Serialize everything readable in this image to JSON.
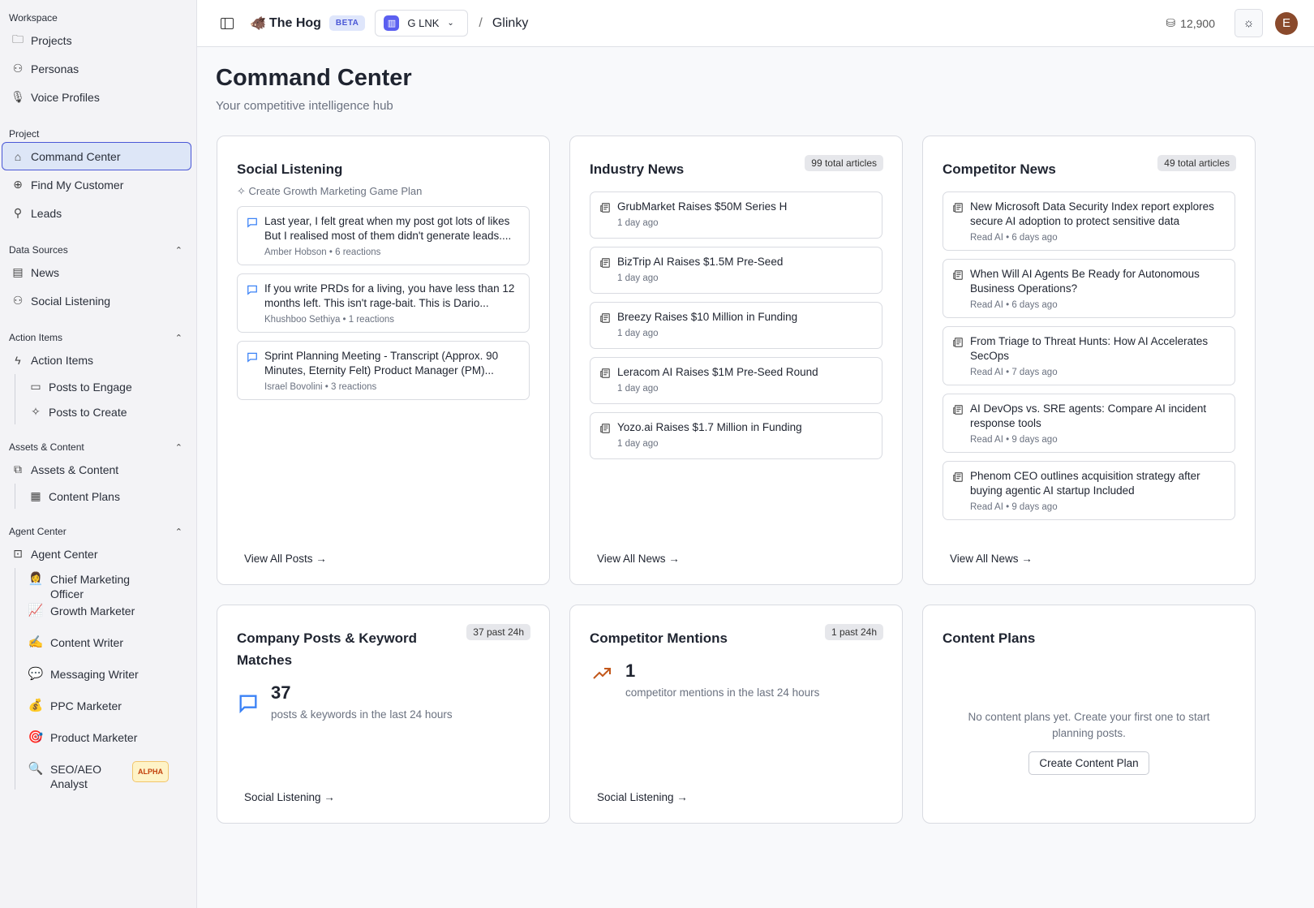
{
  "sidebar": {
    "workspace_label": "Workspace",
    "workspace": [
      {
        "label": "Projects",
        "icon": "folder-icon"
      },
      {
        "label": "Personas",
        "icon": "users-icon"
      },
      {
        "label": "Voice Profiles",
        "icon": "mic-icon"
      }
    ],
    "project_label": "Project",
    "project": [
      {
        "label": "Command Center",
        "icon": "home-icon",
        "active": true
      },
      {
        "label": "Find My Customer",
        "icon": "crosshair-icon"
      },
      {
        "label": "Leads",
        "icon": "user-check-icon"
      }
    ],
    "data_sources_label": "Data Sources",
    "data_sources": [
      {
        "label": "News",
        "icon": "newspaper-icon"
      },
      {
        "label": "Social Listening",
        "icon": "users-icon"
      }
    ],
    "action_items_label": "Action Items",
    "action_items": {
      "label": "Action Items",
      "children": [
        {
          "label": "Posts to Engage"
        },
        {
          "label": "Posts to Create"
        }
      ]
    },
    "assets_label": "Assets & Content",
    "assets": {
      "label": "Assets & Content",
      "children": [
        {
          "label": "Content Plans"
        }
      ]
    },
    "agent_label": "Agent Center",
    "agent": {
      "label": "Agent Center",
      "children": [
        {
          "label": "Chief Marketing Officer",
          "emoji": "👩‍💼"
        },
        {
          "label": "Growth Marketer",
          "emoji": "📈"
        },
        {
          "label": "Content Writer",
          "emoji": "✍️"
        },
        {
          "label": "Messaging Writer",
          "emoji": "💬"
        },
        {
          "label": "PPC Marketer",
          "emoji": "💰"
        },
        {
          "label": "Product Marketer",
          "emoji": "🎯"
        },
        {
          "label": "SEO/AEO Analyst",
          "emoji": "🔍",
          "badge": "ALPHA"
        }
      ]
    }
  },
  "header": {
    "brand": "The Hog",
    "brand_emoji": "🐗",
    "beta": "BETA",
    "workspace": "G LNK",
    "breadcrumb": "Glinky",
    "credits": "12,900"
  },
  "user": {
    "initial": "E"
  },
  "page": {
    "title": "Command Center",
    "subtitle": "Your competitive intelligence hub"
  },
  "social": {
    "title": "Social Listening",
    "action": "Create Growth Marketing Game Plan",
    "footer": "View All Posts →",
    "posts": [
      {
        "text": "Last year, I felt great when my post got lots of likes But I realised most of them didn't generate leads....",
        "meta": "Amber Hobson • 6 reactions"
      },
      {
        "text": "If you write PRDs for a living, you have less than 12 months left. This isn't rage-bait. This is Dario...",
        "meta": "Khushboo Sethiya • 1 reactions"
      },
      {
        "text": "Sprint Planning Meeting - Transcript (Approx. 90 Minutes, Eternity Felt) Product Manager (PM)...",
        "meta": "Israel Bovolini • 3 reactions"
      }
    ]
  },
  "industry": {
    "title": "Industry News",
    "badge": "99 total articles",
    "footer": "View All News →",
    "items": [
      {
        "text": "GrubMarket Raises $50M Series H",
        "meta": "1 day ago"
      },
      {
        "text": "BizTrip AI Raises $1.5M Pre-Seed",
        "meta": "1 day ago"
      },
      {
        "text": "Breezy Raises $10 Million in Funding",
        "meta": "1 day ago"
      },
      {
        "text": "Leracom AI Raises $1M Pre-Seed Round",
        "meta": "1 day ago"
      },
      {
        "text": "Yozo.ai Raises $1.7 Million in Funding",
        "meta": "1 day ago"
      }
    ]
  },
  "competitor": {
    "title": "Competitor News",
    "badge": "49 total articles",
    "footer": "View All News →",
    "items": [
      {
        "text": "New Microsoft Data Security Index report explores secure AI adoption to protect sensitive data",
        "meta": "Read AI • 6 days ago"
      },
      {
        "text": "When Will AI Agents Be Ready for Autonomous Business Operations?",
        "meta": "Read AI • 6 days ago"
      },
      {
        "text": "From Triage to Threat Hunts: How AI Accelerates SecOps",
        "meta": "Read AI • 7 days ago"
      },
      {
        "text": "AI DevOps vs. SRE agents: Compare AI incident response tools",
        "meta": "Read AI • 9 days ago"
      },
      {
        "text": "Phenom CEO outlines acquisition strategy after buying agentic AI startup Included",
        "meta": "Read AI • 9 days ago"
      }
    ]
  },
  "company_posts": {
    "title": "Company Posts & Keyword Matches",
    "badge": "37 past 24h",
    "count": "37",
    "desc": "posts & keywords in the last 24 hours",
    "footer": "Social Listening →"
  },
  "mentions": {
    "title": "Competitor Mentions",
    "badge": "1 past 24h",
    "count": "1",
    "desc": "competitor mentions in the last 24 hours",
    "footer": "Social Listening →"
  },
  "content_plans": {
    "title": "Content Plans",
    "empty": "No content plans yet. Create your first one to start planning posts.",
    "button": "Create Content Plan"
  },
  "colors": {
    "accent": "#4a57d6",
    "chat_icon": "#3b82f6",
    "trend_icon": "#c2571a",
    "alpha": "#c2410c"
  }
}
